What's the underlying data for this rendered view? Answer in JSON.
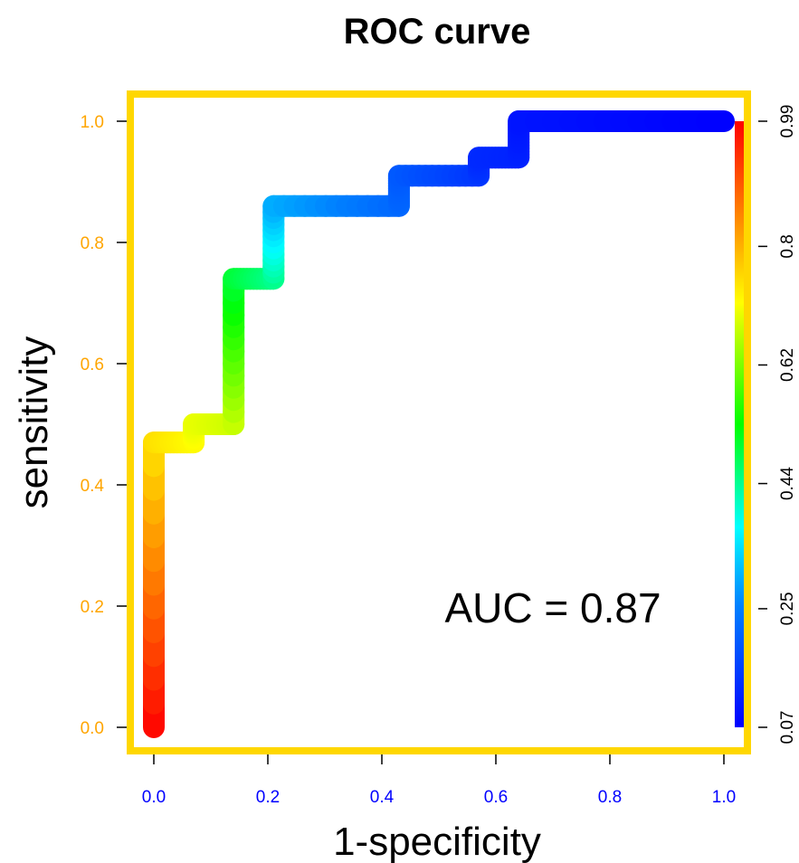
{
  "chart_data": {
    "type": "line",
    "title": "ROC curve",
    "xlabel": "1-specificity",
    "ylabel": "sensitivity",
    "xlim": [
      0,
      1
    ],
    "ylim": [
      0,
      1
    ],
    "x_ticks": [
      "0.0",
      "0.2",
      "0.4",
      "0.6",
      "0.8",
      "1.0"
    ],
    "y_ticks": [
      "0.0",
      "0.2",
      "0.4",
      "0.6",
      "0.8",
      "1.0"
    ],
    "annotation": "AUC = 0.87",
    "colorbar": {
      "ticks": [
        "0.07",
        "0.25",
        "0.44",
        "0.62",
        "0.8",
        "0.99"
      ],
      "range": [
        0.07,
        0.99
      ],
      "colormap": "rainbow (blue low, red high)"
    },
    "series": [
      {
        "x": [
          0,
          0,
          0.07,
          0.07,
          0.14,
          0.14,
          0.21,
          0.21,
          0.43,
          0.43,
          0.57,
          0.57,
          0.64,
          0.64,
          1.0
        ],
        "y": [
          0,
          0.47,
          0.47,
          0.5,
          0.5,
          0.74,
          0.74,
          0.86,
          0.86,
          0.91,
          0.91,
          0.94,
          0.94,
          1.0,
          1.0
        ],
        "threshold": [
          0.99,
          0.75,
          0.72,
          0.7,
          0.68,
          0.5,
          0.45,
          0.3,
          0.22,
          0.2,
          0.15,
          0.13,
          0.12,
          0.1,
          0.07
        ]
      }
    ],
    "colors": {
      "frame": "#ffd700",
      "y_tick_labels": "#ffa500",
      "x_tick_labels": "#0000ff"
    }
  }
}
